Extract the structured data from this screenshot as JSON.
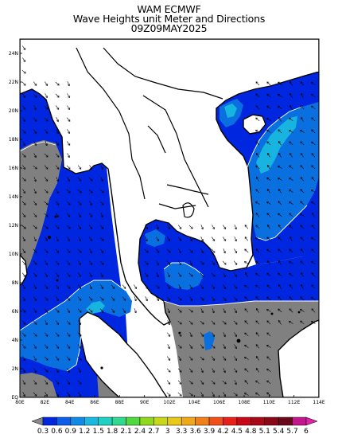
{
  "header": {
    "line1": "WAM ECMWF",
    "line2": "Wave Heights unit Meter and Directions",
    "line3": "09Z09MAY2025"
  },
  "axes": {
    "x_ticks": [
      "80E",
      "82E",
      "84E",
      "86E",
      "88E",
      "90E",
      "102E",
      "104E",
      "106E",
      "108E",
      "110E",
      "112E",
      "114E"
    ],
    "y_ticks": [
      "24N",
      "22N",
      "20N",
      "18N",
      "16N",
      "14N",
      "12N",
      "10N",
      "8N",
      "6N",
      "4N",
      "2N",
      "EQ"
    ]
  },
  "colorbar": {
    "labels": [
      "0.3",
      "0.6",
      "0.9",
      "1.2",
      "1.5",
      "1.8",
      "2.1",
      "2.4",
      "2.7",
      "3",
      "3.3",
      "3.6",
      "3.9",
      "4.2",
      "4.5",
      "4.8",
      "5.1",
      "5.4",
      "5.7",
      "6"
    ],
    "colors": [
      "#888888",
      "#0026e0",
      "#0a5ee8",
      "#0f8ae6",
      "#18b8e0",
      "#20d0c0",
      "#30d890",
      "#50d840",
      "#90d820",
      "#c8d818",
      "#e8c818",
      "#f0a818",
      "#f08018",
      "#f05018",
      "#e82018",
      "#c80818",
      "#a80818",
      "#880818",
      "#680818",
      "#c0188c",
      "#e020a8"
    ]
  },
  "map_colors": {
    "land": "#ffffff",
    "sea_low": "#808080",
    "sea_mid": "#0020d8",
    "sea_high": "#0a70e0",
    "sea_peak": "#18b4e0"
  }
}
